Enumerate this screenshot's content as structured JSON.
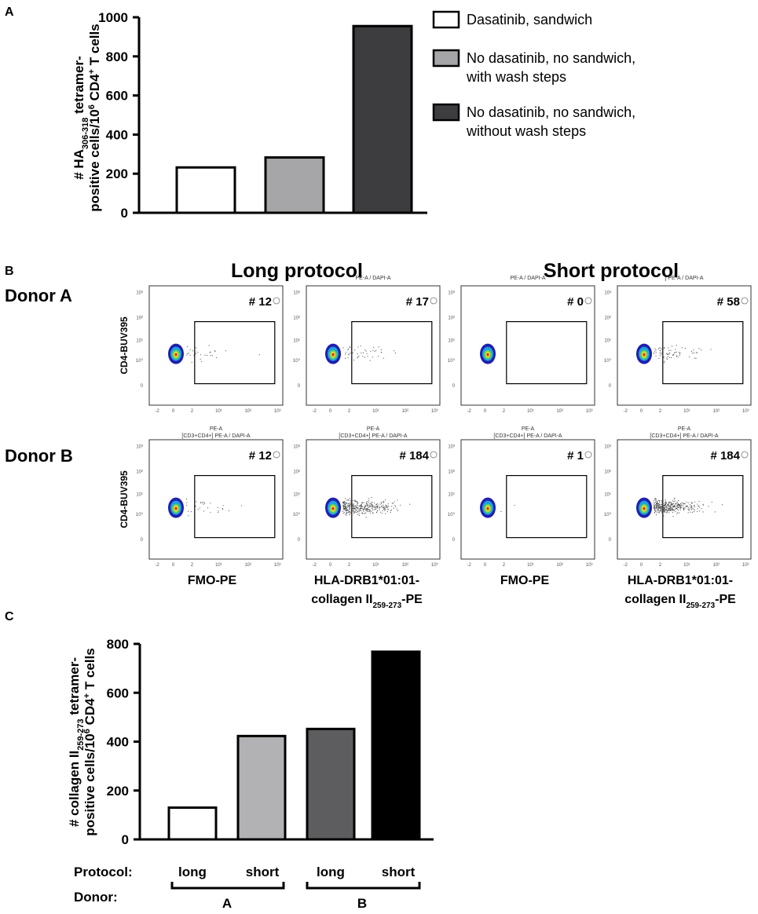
{
  "panels": {
    "a": "A",
    "b": "B",
    "c": "C"
  },
  "chart_data": [
    {
      "type": "bar",
      "panel": "A",
      "title": "",
      "ylabel_line1": "# HA306-318 tetramer-",
      "ylabel_line2": "positive cells/10^6 CD4+ T cells",
      "ylabel_parts": {
        "l1_a": "# HA",
        "l1_sub": "306-318",
        "l1_b": " tetramer-",
        "l2_a": "positive cells/10",
        "l2_sup1": "6",
        "l2_b": " CD4",
        "l2_sup2": "+",
        "l2_c": " T cells"
      },
      "ylim": [
        0,
        1000
      ],
      "yticks": [
        0,
        200,
        400,
        600,
        800,
        1000
      ],
      "categories": [
        "Dasatinib, sandwich",
        "No dasatinib, no sandwich, with wash steps",
        "No dasatinib, no sandwich, without wash steps"
      ],
      "values": [
        232,
        283,
        955
      ],
      "colors": [
        "#ffffff",
        "#a6a6a8",
        "#3d3d3f"
      ],
      "legend": [
        {
          "lines": [
            "Dasatinib, sandwich"
          ],
          "color": "#ffffff"
        },
        {
          "lines": [
            "No dasatinib, no sandwich,",
            "with wash steps"
          ],
          "color": "#a6a6a8"
        },
        {
          "lines": [
            "No dasatinib, no sandwich,",
            "without wash steps"
          ],
          "color": "#3d3d3f"
        }
      ],
      "legend_position": "right"
    },
    {
      "type": "scatter",
      "panel": "B",
      "subtype": "flow-cytometry",
      "columns": [
        {
          "protocol": "Long protocol",
          "stain": "FMO-PE"
        },
        {
          "protocol": "Long protocol",
          "stain": "HLA-DRB1*01:01-collagen II259-273-PE"
        },
        {
          "protocol": "Short protocol",
          "stain": "FMO-PE"
        },
        {
          "protocol": "Short protocol",
          "stain": "HLA-DRB1*01:01-collagen II259-273-PE"
        }
      ],
      "rows": [
        "Donor A",
        "Donor B"
      ],
      "ylabel": "CD4-BUV395",
      "xlabel": "PE-A",
      "plot_header": "[CD3+CD4+] PE-A / DAPI-A",
      "plot_header_short": "PE-A / DAPI-A",
      "plot_header_partial": "] PE-A / DAPI-A",
      "y_tick_labels": [
        "10³",
        "10²",
        "10¹",
        "10⁰",
        "0"
      ],
      "x_tick_labels": [
        "-2",
        "0",
        "2",
        "10¹",
        "10²",
        "10³"
      ],
      "gate_counts": [
        [
          "# 12",
          "# 17",
          "# 0",
          "# 58"
        ],
        [
          "# 12",
          "# 184",
          "# 1",
          "# 184"
        ]
      ],
      "protocol_headers": [
        "Long protocol",
        "Short protocol"
      ],
      "stain_labels": [
        "FMO-PE",
        "HLA-DRB1*01:01-",
        "collagen II",
        "259-273",
        "-PE"
      ]
    },
    {
      "type": "bar",
      "panel": "C",
      "title": "",
      "ylabel_parts": {
        "l1_a": "# collagen II",
        "l1_sub": "259-273",
        "l1_b": " tetramer-",
        "l2_a": "positive cells/10",
        "l2_sup1": "6",
        "l2_b": " CD4",
        "l2_sup2": "+",
        "l2_c": " T cells"
      },
      "ylim": [
        0,
        800
      ],
      "yticks": [
        0,
        200,
        400,
        600,
        800
      ],
      "categories": [
        "long",
        "short",
        "long",
        "short"
      ],
      "groups": [
        "A",
        "A",
        "B",
        "B"
      ],
      "values": [
        130,
        423,
        452,
        768
      ],
      "colors": [
        "#ffffff",
        "#b2b2b4",
        "#5d5d5f",
        "#000000"
      ],
      "row_labels": {
        "protocol": "Protocol:",
        "donor": "Donor:"
      },
      "group_labels": [
        "A",
        "B"
      ]
    }
  ]
}
